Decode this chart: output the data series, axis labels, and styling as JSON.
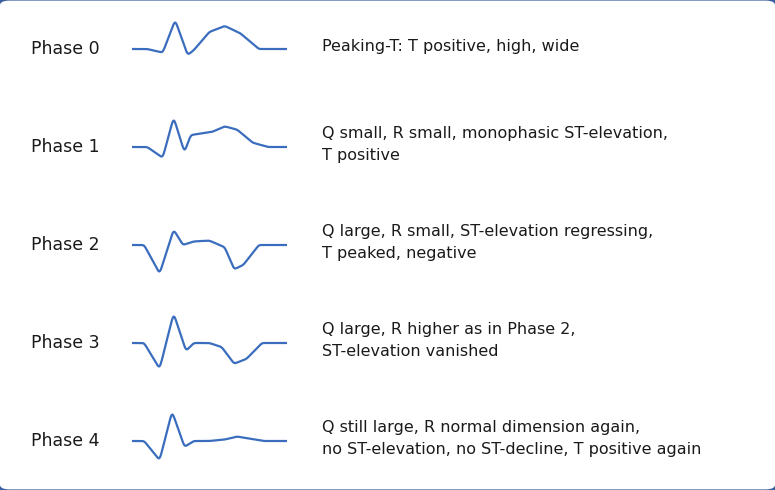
{
  "background_color": "#ffffff",
  "border_color": "#3a5f9e",
  "line_color": "#3a6dbe",
  "text_color": "#1a1a1a",
  "phases": [
    "Phase 0",
    "Phase 1",
    "Phase 2",
    "Phase 3",
    "Phase 4"
  ],
  "descriptions": [
    "Peaking-T: T positive, high, wide",
    "Q small, R small, monophasic ST-elevation,\nT positive",
    "Q large, R small, ST-elevation regressing,\nT peaked, negative",
    "Q large, R higher as in Phase 2,\nST-elevation vanished",
    "Q still large, R normal dimension again,\nno ST-elevation, no ST-decline, T positive again"
  ],
  "label_fontsize": 12.5,
  "desc_fontsize": 11.5,
  "figsize": [
    7.75,
    4.9
  ],
  "dpi": 100
}
